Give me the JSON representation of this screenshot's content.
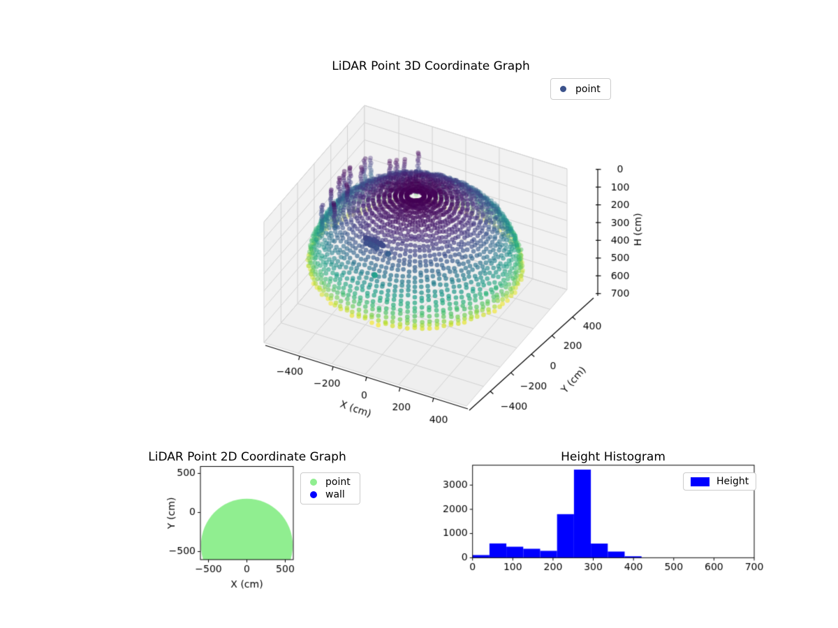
{
  "style": {
    "figure_bg": "#ffffff",
    "pane_color": "#f2f2f2",
    "bottom_pane_color": "#efefef",
    "grid_color": "#d2d2d2",
    "axis_color": "#000000",
    "tick_label_color": "#000000",
    "tick_font_px": 14
  },
  "chart_data": [
    {
      "id": "plot3d",
      "type": "scatter",
      "projection": "3d",
      "title": "LiDAR Point 3D Coordinate Graph",
      "xlabel": "X (cm)",
      "ylabel": "Y (cm)",
      "zlabel": "H (cm)",
      "xlim": [
        -605,
        605
      ],
      "ylim": [
        -605,
        605
      ],
      "zlim": [
        0,
        700
      ],
      "z_axis_inverted": true,
      "grid": true,
      "colormap": "viridis",
      "xticks": [
        -400,
        -200,
        0,
        200,
        400
      ],
      "yticks": [
        -400,
        -200,
        0,
        200,
        400
      ],
      "zticks": [
        0,
        100,
        200,
        300,
        400,
        500,
        600,
        700
      ],
      "legend": [
        {
          "label": "point",
          "color": "#3b528b"
        }
      ],
      "point_cloud": {
        "description": "LiDAR dome point cloud colored by height H (viridis: low H purple at top, high H yellow at rim)",
        "dome_radius_cm": 570,
        "dome_height_cm": 420,
        "phi_start_deg": 1.5,
        "phi_step_deg": 3.1,
        "phi_end_deg": 88,
        "theta_step_deg": 4,
        "jitter_cm": 16,
        "color_norm": [
          0,
          420
        ],
        "marker_radius_px": 3.3,
        "alpha_near": 0.72,
        "alpha_far": 0.22
      },
      "streaks": {
        "theta_deg_min": 115,
        "theta_deg_max": 215,
        "count": 14,
        "phi_deg_min": 28,
        "phi_deg_max": 55,
        "length_cm": 150,
        "step_cm": 13
      },
      "outliers": {
        "cluster_points": [
          [
            -130,
            -335,
            100
          ],
          [
            -118,
            -341,
            97
          ],
          [
            -106,
            -332,
            104
          ],
          [
            -95,
            -338,
            108
          ],
          [
            -84,
            -330,
            99
          ],
          [
            -72,
            -336,
            106
          ],
          [
            -60,
            -342,
            98
          ],
          [
            -50,
            -334,
            110
          ],
          [
            -40,
            -340,
            102
          ],
          [
            -95,
            -352,
            118
          ],
          [
            -75,
            -355,
            116
          ],
          [
            -115,
            -356,
            112
          ],
          [
            -55,
            -358,
            120
          ],
          [
            -25,
            -345,
            105
          ],
          [
            10,
            -350,
            140
          ]
        ],
        "teal_point": [
          -50,
          -390,
          260
        ],
        "apex_point": [
          75,
          70,
          6
        ]
      }
    },
    {
      "id": "plot2d",
      "type": "scatter",
      "title": "LiDAR Point 2D Coordinate Graph",
      "xlabel": "X (cm)",
      "ylabel": "Y (cm)",
      "xlim": [
        -605,
        605
      ],
      "ylim": [
        -603,
        589
      ],
      "xticks": [
        -500,
        0,
        500
      ],
      "yticks": [
        500,
        0,
        -500
      ],
      "legend": [
        {
          "label": "point",
          "color": "#90ee90"
        },
        {
          "label": "wall",
          "color": "#0000ff"
        }
      ],
      "blob": {
        "description": "dense lightgreen point region: circle clipped by axes bottom",
        "color": "#90ee90",
        "center_x": 0,
        "center_y": -422,
        "radius": 598
      }
    },
    {
      "id": "histogram",
      "type": "bar",
      "title": "Height Histogram",
      "xlim": [
        0,
        700
      ],
      "ylim": [
        0,
        3822
      ],
      "xticks": [
        0,
        100,
        200,
        300,
        400,
        500,
        600,
        700
      ],
      "yticks": [
        0,
        1000,
        2000,
        3000
      ],
      "bin_edges": [
        0,
        42,
        84,
        126,
        168,
        210,
        252,
        294,
        336,
        378,
        420
      ],
      "values": [
        110,
        590,
        455,
        370,
        285,
        1800,
        3640,
        585,
        255,
        60
      ],
      "bar_color": "#0000ff",
      "legend": [
        {
          "label": "Height",
          "color": "#0000ff"
        }
      ]
    }
  ]
}
